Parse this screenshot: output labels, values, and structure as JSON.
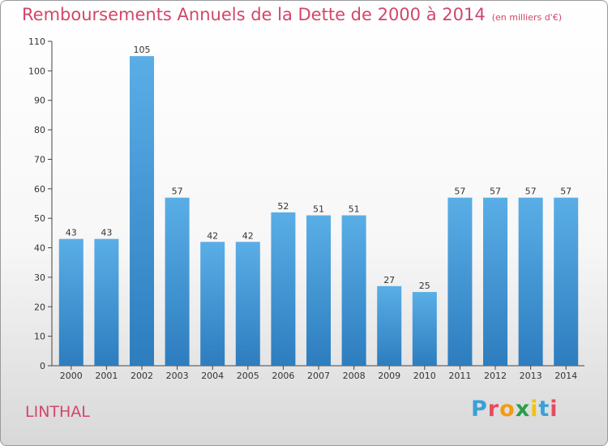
{
  "title": "Remboursements Annuels de la Dette de 2000 à 2014",
  "title_unit": "(en milliers d'€)",
  "commune": "LINTHAL",
  "logo": "Proxiti",
  "chart_data": {
    "type": "bar",
    "categories": [
      "2000",
      "2001",
      "2002",
      "2003",
      "2004",
      "2005",
      "2006",
      "2007",
      "2008",
      "2009",
      "2010",
      "2011",
      "2012",
      "2013",
      "2014"
    ],
    "values": [
      43,
      43,
      105,
      57,
      42,
      42,
      52,
      51,
      51,
      27,
      25,
      57,
      57,
      57,
      57
    ],
    "yticks": [
      0,
      10,
      20,
      30,
      40,
      50,
      60,
      70,
      80,
      90,
      100,
      110
    ],
    "ylim": [
      0,
      110
    ],
    "grid": false,
    "bar_color": "#4a9ad8",
    "text_color": "#d2466a"
  }
}
